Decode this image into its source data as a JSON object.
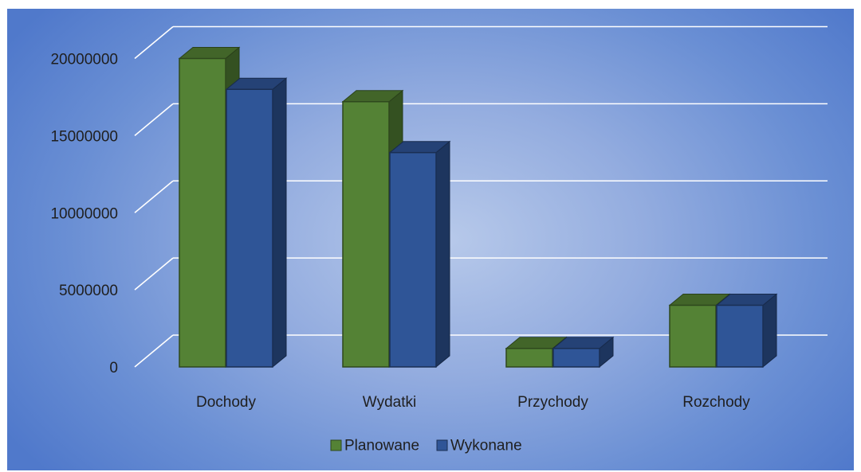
{
  "chart_data": {
    "type": "bar",
    "style": "3d-clustered-column",
    "categories": [
      "Dochody",
      "Wydatki",
      "Przychody",
      "Rozchody"
    ],
    "series": [
      {
        "name": "Planowane",
        "values": [
          20000000,
          17200000,
          1200000,
          4000000
        ],
        "color": "#548235"
      },
      {
        "name": "Wykonane",
        "values": [
          18000000,
          13900000,
          1200000,
          4000000
        ],
        "color": "#2f5597"
      }
    ],
    "yticks": [
      0,
      5000000,
      10000000,
      15000000,
      20000000,
      25000000
    ],
    "ylim": [
      0,
      27000000
    ],
    "grid": true,
    "legend": "bottom",
    "title": "",
    "xlabel": "",
    "ylabel": ""
  },
  "colors": {
    "background_edge": "#5079cb",
    "background_center": "#b7c9ea",
    "gridline": "#ffffff",
    "text": "#1f1f1f"
  }
}
